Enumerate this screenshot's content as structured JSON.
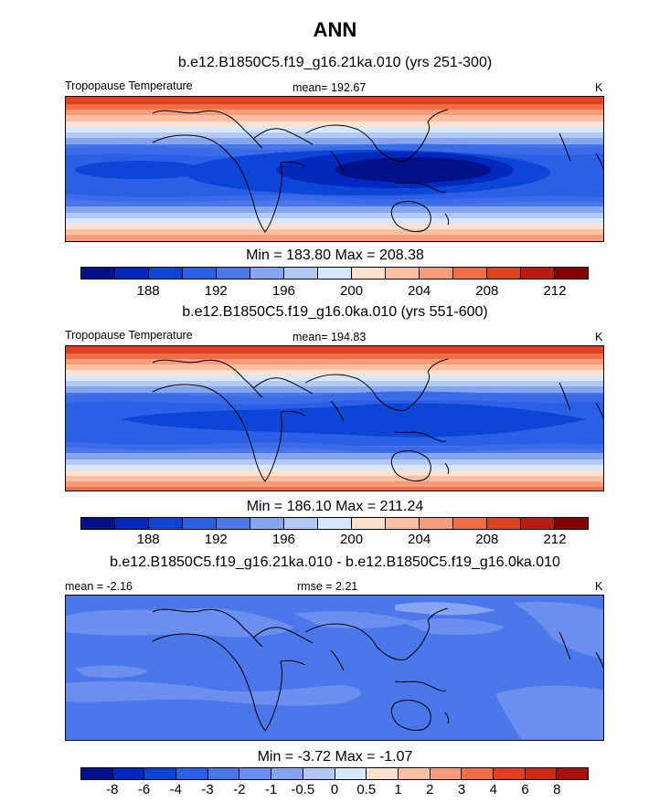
{
  "title": "ANN",
  "colors": {
    "levels15": [
      "#00118a",
      "#0229bd",
      "#0b46d6",
      "#2a5fe6",
      "#4a78ea",
      "#86a5f0",
      "#b4c8f6",
      "#d6e6fb",
      "#fde1cf",
      "#fbbfa4",
      "#f79c7a",
      "#f16d45",
      "#e0401e",
      "#bb1c10",
      "#870000"
    ],
    "levels17": [
      "#00118a",
      "#0229bd",
      "#0b46d6",
      "#2a5fe6",
      "#4a78ea",
      "#6b8fee",
      "#86a5f0",
      "#b4c8f6",
      "#d6e6fb",
      "#fde1cf",
      "#fbbfa4",
      "#f79c7a",
      "#f16d45",
      "#e0401e",
      "#c82a14",
      "#a51108",
      "#870000"
    ]
  },
  "panels": [
    {
      "title": "b.e12.B1850C5.f19_g16.21ka.010 (yrs 251-300)",
      "left_label": "Tropopause Temperature",
      "center_label": "mean= 192.67",
      "right_label": "K",
      "stats": "Min = 183.80 Max = 208.38",
      "ticks": [
        "188",
        "192",
        "196",
        "200",
        "204",
        "208",
        "212"
      ],
      "tick_positions": [
        2,
        4,
        6,
        8,
        10,
        12,
        14
      ],
      "cells": 15
    },
    {
      "title": "b.e12.B1850C5.f19_g16.0ka.010 (yrs 551-600)",
      "left_label": "Tropopause Temperature",
      "center_label": "mean= 194.83",
      "right_label": "K",
      "stats": "Min = 186.10 Max = 211.24",
      "ticks": [
        "188",
        "192",
        "196",
        "200",
        "204",
        "208",
        "212"
      ],
      "tick_positions": [
        2,
        4,
        6,
        8,
        10,
        12,
        14
      ],
      "cells": 15
    },
    {
      "title": "b.e12.B1850C5.f19_g16.21ka.010 - b.e12.B1850C5.f19_g16.0ka.010",
      "left_label": "mean =  -2.16",
      "center_label": "rmse =  2.21",
      "right_label": "K",
      "stats": "Min =  -3.72 Max =  -1.07",
      "ticks": [
        "-8",
        "-6",
        "-4",
        "-3",
        "-2",
        "-1",
        "-0.5",
        "0",
        "0.5",
        "1",
        "2",
        "3",
        "4",
        "6",
        "8"
      ],
      "tick_positions": [
        1,
        2,
        3,
        4,
        5,
        6,
        7,
        8,
        9,
        10,
        11,
        12,
        13,
        14,
        15
      ],
      "cells": 16
    }
  ]
}
